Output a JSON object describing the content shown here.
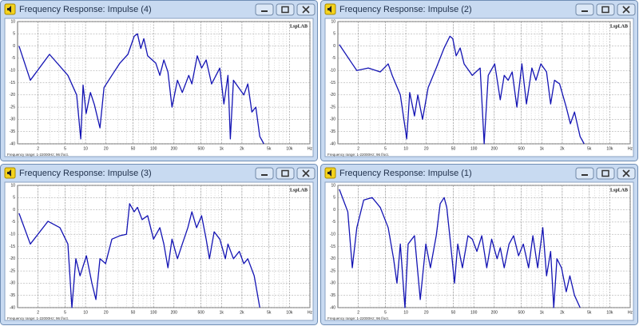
{
  "chart_data": [
    {
      "type": "line",
      "window_title": "Frequency Response: Impulse (4)",
      "watermark": "LspLAB",
      "footnote": "Frequency range: 1-22000Hz; 96 f/oct.",
      "x_scale": "log",
      "grid": true,
      "xlim": [
        1,
        20000
      ],
      "ylim": [
        -40,
        10
      ],
      "xticks": [
        2,
        5,
        10,
        20,
        50,
        100,
        200,
        500,
        {
          "value": 1000,
          "label": "1k"
        },
        {
          "value": 2000,
          "label": "2k"
        },
        {
          "value": 5000,
          "label": "5k"
        },
        {
          "value": 10000,
          "label": "10k"
        },
        {
          "value": 20000,
          "label": "Hz"
        }
      ],
      "yticks": [
        10,
        5,
        0,
        -5,
        -10,
        -15,
        -20,
        -25,
        -30,
        -35,
        -40
      ],
      "x": [
        1.05,
        1.54,
        2.95,
        5.5,
        7.4,
        8.5,
        9.2,
        10.2,
        11.8,
        13.5,
        16.3,
        18.7,
        24.4,
        32,
        42,
        52,
        58,
        65,
        72,
        82,
        108,
        124,
        142,
        163,
        187,
        225,
        265,
        330,
        367,
        440,
        510,
        595,
        715,
        945,
        1085,
        1245,
        1350,
        1500,
        2130,
        2440,
        2800,
        3200,
        3660,
        4200
      ],
      "series": [
        {
          "color": "#1414b4",
          "values": [
            0,
            -14,
            -3.4,
            -12,
            -20,
            -38,
            -16,
            -27.6,
            -19,
            -24,
            -33.5,
            -17,
            -12,
            -7,
            -3.4,
            4,
            5,
            -1,
            3,
            -4,
            -7,
            -12,
            -5.7,
            -10.6,
            -25,
            -14,
            -19,
            -12,
            -15.5,
            -4,
            -9,
            -5.7,
            -15.5,
            -9,
            -23.7,
            -12,
            -38,
            -14,
            -20,
            -15.5,
            -27,
            -25,
            -37,
            -40
          ]
        }
      ]
    },
    {
      "type": "line",
      "window_title": "Frequency Response: Impulse (2)",
      "watermark": "LspLAB",
      "footnote": "Frequency range: 1-22000Hz; 96 f/oct.",
      "x_scale": "log",
      "grid": true,
      "xlim": [
        1,
        20000
      ],
      "ylim": [
        -40,
        10
      ],
      "xticks": [
        2,
        5,
        10,
        20,
        50,
        100,
        200,
        500,
        {
          "value": 1000,
          "label": "1k"
        },
        {
          "value": 2000,
          "label": "2k"
        },
        {
          "value": 5000,
          "label": "5k"
        },
        {
          "value": 10000,
          "label": "10k"
        },
        {
          "value": 20000,
          "label": "Hz"
        }
      ],
      "yticks": [
        10,
        5,
        0,
        -5,
        -10,
        -15,
        -20,
        -25,
        -30,
        -35,
        -40
      ],
      "x": [
        1.05,
        1.63,
        1.9,
        2.8,
        4.2,
        5.5,
        6.3,
        8.3,
        10.3,
        11.4,
        13.4,
        15,
        17.6,
        21.3,
        28,
        36.6,
        44.5,
        49,
        55,
        63,
        72,
        95,
        124,
        142,
        163,
        203,
        245,
        280,
        320,
        367,
        430,
        510,
        595,
        715,
        820,
        970,
        1175,
        1350,
        1540,
        1830,
        2290,
        2640,
        3030,
        3660,
        4200
      ],
      "series": [
        {
          "color": "#1414b4",
          "values": [
            0.6,
            -7.3,
            -10,
            -9,
            -10.6,
            -7.3,
            -12,
            -20,
            -38,
            -19,
            -28.6,
            -20,
            -30,
            -17,
            -9,
            -0.8,
            4,
            3,
            -4,
            -0.8,
            -7.3,
            -12,
            -9,
            -40,
            -12,
            -7.3,
            -22,
            -12,
            -14,
            -10.6,
            -25,
            -7.3,
            -23.7,
            -9,
            -14,
            -7.3,
            -10.6,
            -23.7,
            -14,
            -15.5,
            -25,
            -31.8,
            -27,
            -37,
            -40
          ]
        }
      ]
    },
    {
      "type": "line",
      "window_title": "Frequency Response: Impulse (3)",
      "watermark": "LspLAB",
      "footnote": "Frequency range: 1-22000Hz; 96 f/oct.",
      "x_scale": "log",
      "grid": true,
      "xlim": [
        1,
        20000
      ],
      "ylim": [
        -40,
        10
      ],
      "xticks": [
        2,
        5,
        10,
        20,
        50,
        100,
        200,
        500,
        {
          "value": 1000,
          "label": "1k"
        },
        {
          "value": 2000,
          "label": "2k"
        },
        {
          "value": 5000,
          "label": "5k"
        },
        {
          "value": 10000,
          "label": "10k"
        },
        {
          "value": 20000,
          "label": "Hz"
        }
      ],
      "yticks": [
        10,
        5,
        0,
        -5,
        -10,
        -15,
        -20,
        -25,
        -30,
        -35,
        -40
      ],
      "x": [
        1.05,
        1.54,
        2.8,
        4.2,
        5.5,
        6.3,
        7.2,
        8.3,
        10.3,
        12.4,
        14.2,
        16.3,
        19.7,
        24.4,
        32,
        40,
        44.5,
        52,
        58,
        68,
        82,
        100,
        124,
        142,
        163,
        187,
        225,
        265,
        320,
        367,
        430,
        510,
        595,
        665,
        780,
        945,
        1140,
        1245,
        1500,
        1830,
        2130,
        2440,
        3030,
        3660
      ],
      "series": [
        {
          "color": "#1414b4",
          "values": [
            -1.4,
            -14,
            -4.7,
            -7.3,
            -14,
            -40,
            -20,
            -27,
            -18.8,
            -30,
            -36.7,
            -20,
            -22,
            -12,
            -10.6,
            -10,
            2.5,
            -0.8,
            1,
            -4,
            -2.4,
            -12,
            -7.3,
            -14,
            -23.7,
            -12,
            -20,
            -14,
            -7.3,
            -0.8,
            -7.3,
            -2.4,
            -12,
            -20,
            -9,
            -12,
            -20,
            -14,
            -20,
            -17,
            -22,
            -20,
            -27,
            -40
          ]
        }
      ]
    },
    {
      "type": "line",
      "window_title": "Frequency Response: Impulse (1)",
      "watermark": "LspLAB",
      "footnote": "Frequency range: 1-22000Hz; 96 f/oct.",
      "x_scale": "log",
      "grid": true,
      "xlim": [
        1,
        20000
      ],
      "ylim": [
        -40,
        10
      ],
      "xticks": [
        2,
        5,
        10,
        20,
        50,
        100,
        200,
        500,
        {
          "value": 1000,
          "label": "1k"
        },
        {
          "value": 2000,
          "label": "2k"
        },
        {
          "value": 5000,
          "label": "5k"
        },
        {
          "value": 10000,
          "label": "10k"
        },
        {
          "value": 20000,
          "label": "Hz"
        }
      ],
      "yticks": [
        10,
        5,
        0,
        -5,
        -10,
        -15,
        -20,
        -25,
        -30,
        -35,
        -40
      ],
      "x": [
        1.05,
        1.4,
        1.63,
        1.9,
        2.4,
        3.2,
        4.2,
        5.5,
        6.6,
        7.4,
        8.3,
        9.7,
        10.8,
        13.4,
        16.3,
        19.7,
        23,
        28,
        32,
        36.6,
        40,
        45.6,
        52,
        58,
        68,
        82,
        95,
        111,
        131,
        155,
        183,
        220,
        245,
        280,
        330,
        385,
        455,
        535,
        640,
        740,
        870,
        1035,
        1175,
        1350,
        1500,
        1670,
        1950,
        2290,
        2590,
        3030,
        3660
      ],
      "series": [
        {
          "color": "#1414b4",
          "values": [
            8.4,
            -0.8,
            -23.7,
            -7.3,
            4,
            5,
            1,
            -7.3,
            -20,
            -30,
            -14,
            -40,
            -14,
            -10.6,
            -36.7,
            -14,
            -23.7,
            -10.6,
            2.5,
            5,
            1,
            -14,
            -30,
            -14,
            -23.7,
            -10.6,
            -12,
            -17,
            -10.6,
            -23.7,
            -12,
            -20,
            -15.5,
            -23.7,
            -14,
            -10.6,
            -18.8,
            -14,
            -23.7,
            -10.6,
            -23.7,
            -7.3,
            -27,
            -17,
            -40,
            -20,
            -23.7,
            -33.5,
            -27,
            -35,
            -40
          ]
        }
      ]
    }
  ]
}
